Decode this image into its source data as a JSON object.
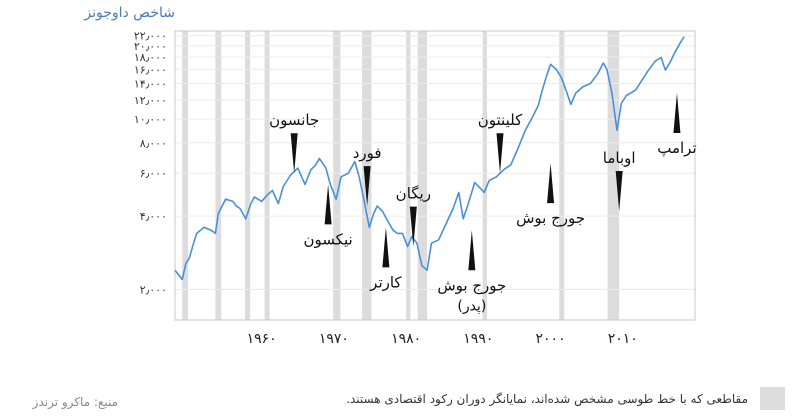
{
  "chart_data": {
    "type": "line",
    "title": "شاخص داوجونز",
    "scale": "log",
    "ylim": [
      1500,
      23000
    ],
    "xlim": [
      1948,
      2020
    ],
    "yticks": [
      {
        "value": 2000,
        "label": "۲٫۰۰۰"
      },
      {
        "value": 4000,
        "label": "۴٫۰۰۰"
      },
      {
        "value": 6000,
        "label": "۶٫۰۰۰"
      },
      {
        "value": 8000,
        "label": "۸٫۰۰۰"
      },
      {
        "value": 10000,
        "label": "۱۰٫۰۰۰"
      },
      {
        "value": 12000,
        "label": "۱۲٫۰۰۰"
      },
      {
        "value": 14000,
        "label": "۱۴٫۰۰۰"
      },
      {
        "value": 16000,
        "label": "۱۶٫۰۰۰"
      },
      {
        "value": 18000,
        "label": "۱۸٫۰۰۰"
      },
      {
        "value": 20000,
        "label": "۲۰٫۰۰۰"
      },
      {
        "value": 22000,
        "label": "۲۲٫۰۰۰"
      }
    ],
    "xticks": [
      {
        "value": 1960,
        "label": "۱۹۶۰"
      },
      {
        "value": 1970,
        "label": "۱۹۷۰"
      },
      {
        "value": 1980,
        "label": "۱۹۸۰"
      },
      {
        "value": 1990,
        "label": "۱۹۹۰"
      },
      {
        "value": 2000,
        "label": "۲۰۰۰"
      },
      {
        "value": 2010,
        "label": "۲۰۱۰"
      }
    ],
    "recessions": [
      [
        1949.0,
        1949.8
      ],
      [
        1953.6,
        1954.4
      ],
      [
        1957.7,
        1958.4
      ],
      [
        1960.4,
        1961.1
      ],
      [
        1969.9,
        1970.9
      ],
      [
        1973.9,
        1975.2
      ],
      [
        1980.0,
        1980.6
      ],
      [
        1981.6,
        1982.9
      ],
      [
        1990.6,
        1991.2
      ],
      [
        2001.2,
        2001.9
      ],
      [
        2007.9,
        2009.5
      ]
    ],
    "series": [
      {
        "color": "#4a90d9",
        "x": [
          1948.0,
          1948.5,
          1949.0,
          1949.5,
          1950.0,
          1950.5,
          1951.0,
          1952.0,
          1953.0,
          1953.6,
          1954.0,
          1955.0,
          1956.0,
          1956.5,
          1957.0,
          1957.8,
          1958.5,
          1959.0,
          1960.0,
          1960.8,
          1961.5,
          1962.3,
          1963.0,
          1964.0,
          1965.0,
          1966.0,
          1966.8,
          1967.5,
          1968.0,
          1968.9,
          1969.5,
          1970.3,
          1971.0,
          1972.0,
          1972.9,
          1973.5,
          1974.2,
          1974.9,
          1975.5,
          1976.0,
          1976.7,
          1977.5,
          1978.2,
          1978.8,
          1979.5,
          1980.2,
          1980.8,
          1981.5,
          1982.2,
          1982.9,
          1983.5,
          1984.5,
          1985.5,
          1986.5,
          1987.3,
          1987.9,
          1988.5,
          1989.5,
          1990.3,
          1990.8,
          1991.5,
          1992.5,
          1993.5,
          1994.5,
          1995.5,
          1996.5,
          1997.5,
          1998.3,
          1998.8,
          1999.5,
          2000.0,
          2000.8,
          2001.5,
          2002.2,
          2002.8,
          2003.5,
          2004.5,
          2005.5,
          2006.5,
          2007.3,
          2007.8,
          2008.5,
          2009.2,
          2009.8,
          2010.5,
          2011.3,
          2011.8,
          2012.5,
          2013.5,
          2014.5,
          2015.3,
          2015.9,
          2016.5,
          2017.3,
          2018.0,
          2018.5
        ],
        "y": [
          2400,
          2300,
          2200,
          2550,
          2700,
          3050,
          3400,
          3600,
          3500,
          3400,
          4100,
          4700,
          4600,
          4400,
          4300,
          3900,
          4500,
          4800,
          4600,
          4900,
          5100,
          4500,
          5300,
          5900,
          6300,
          5400,
          6200,
          6500,
          6900,
          6300,
          5400,
          4700,
          5800,
          6000,
          6700,
          5800,
          4600,
          3600,
          4100,
          4400,
          4200,
          3800,
          3500,
          3400,
          3400,
          3000,
          3300,
          3100,
          2500,
          2400,
          3100,
          3200,
          3700,
          4300,
          5000,
          3900,
          4400,
          5500,
          5200,
          5000,
          5600,
          5800,
          6200,
          6500,
          7600,
          9000,
          10200,
          11400,
          13000,
          15200,
          16800,
          16000,
          14800,
          13000,
          11500,
          12800,
          13600,
          14000,
          15300,
          17000,
          16000,
          12800,
          9000,
          11600,
          12500,
          12900,
          13200,
          14200,
          15800,
          17300,
          17900,
          15900,
          17000,
          19000,
          20700,
          21800
        ]
      }
    ],
    "annotations": [
      {
        "label": "جانسون",
        "label2": "",
        "year": 1964.5,
        "anchor": 6000,
        "dir": "up"
      },
      {
        "label": "نیکسون",
        "label2": "",
        "year": 1969.2,
        "anchor": 5400,
        "dir": "down"
      },
      {
        "label": "فورد",
        "label2": "",
        "year": 1974.6,
        "anchor": 4400,
        "dir": "up"
      },
      {
        "label": "کارتر",
        "label2": "",
        "year": 1977.2,
        "anchor": 3600,
        "dir": "down"
      },
      {
        "label": "ریگان",
        "label2": "",
        "year": 1981.0,
        "anchor": 3000,
        "dir": "up"
      },
      {
        "label": "جورج بوش",
        "label2": "(پدر)",
        "year": 1989.1,
        "anchor": 3500,
        "dir": "down"
      },
      {
        "label": "کلینتون",
        "label2": "",
        "year": 1993.0,
        "anchor": 6000,
        "dir": "up"
      },
      {
        "label": "جورج بوش",
        "label2": "",
        "year": 2000.0,
        "anchor": 6600,
        "dir": "down"
      },
      {
        "label": "اوباما",
        "label2": "",
        "year": 2009.5,
        "anchor": 4200,
        "dir": "up"
      },
      {
        "label": "ترامپ",
        "label2": "",
        "year": 2017.5,
        "anchor": 12800,
        "dir": "down"
      }
    ]
  },
  "legend": {
    "text": "مقاطعی که با خط طوسی مشخص شده‌اند، نمایانگر دوران رکود اقتصادی هستند."
  },
  "source": {
    "text": "منبع: ماکرو ترندز"
  }
}
